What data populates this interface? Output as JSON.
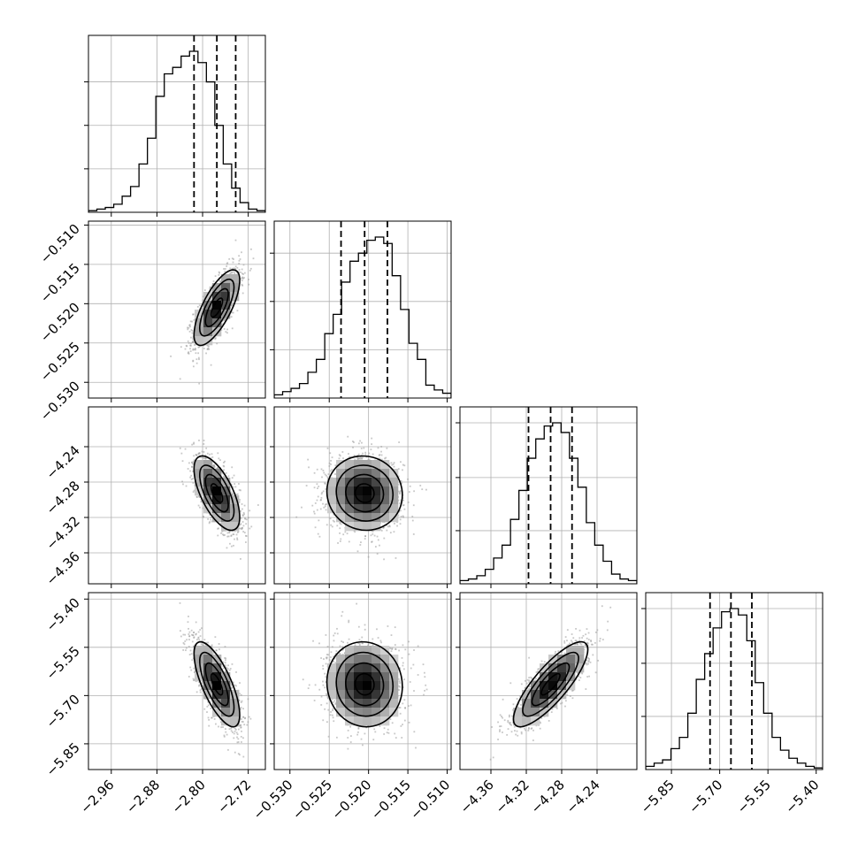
{
  "chart_data": {
    "type": "corner",
    "parameters": [
      {
        "range": [
          -3.0,
          -2.69
        ],
        "ticks": [
          -2.96,
          -2.88,
          -2.8,
          -2.72
        ],
        "tick_labels": [
          "−2.96",
          "−2.88",
          "−2.80",
          "−2.72"
        ],
        "median": -2.775,
        "quantiles": [
          -2.815,
          -2.775,
          -2.742
        ],
        "sigma": 0.02,
        "hist_counts": [
          0.01,
          0.02,
          0.03,
          0.05,
          0.1,
          0.16,
          0.3,
          0.46,
          0.72,
          0.86,
          0.9,
          0.97,
          1.0,
          0.93,
          0.81,
          0.54,
          0.3,
          0.15,
          0.06,
          0.02,
          0.01
        ],
        "hist_grid": [
          0.27,
          0.54,
          0.81
        ]
      },
      {
        "range": [
          -0.532,
          -0.5095
        ],
        "ticks": [
          -0.53,
          -0.525,
          -0.52,
          -0.515,
          -0.51
        ],
        "tick_labels": [
          "−0.530",
          "−0.525",
          "−0.520",
          "−0.515",
          "−0.510"
        ],
        "median": -0.5205,
        "quantiles": [
          -0.5235,
          -0.5205,
          -0.5176
        ],
        "sigma": 0.0024,
        "hist_counts": [
          0.02,
          0.04,
          0.06,
          0.09,
          0.16,
          0.24,
          0.4,
          0.52,
          0.72,
          0.85,
          0.9,
          0.98,
          1.0,
          0.96,
          0.76,
          0.55,
          0.34,
          0.24,
          0.08,
          0.05,
          0.03
        ],
        "hist_grid": [
          0.3,
          0.6,
          0.9
        ]
      },
      {
        "range": [
          -4.395,
          -4.195
        ],
        "ticks": [
          -4.36,
          -4.32,
          -4.28,
          -4.24
        ],
        "tick_labels": [
          "−4.36",
          "−4.32",
          "−4.28",
          "−4.24"
        ],
        "median": -4.2925,
        "quantiles": [
          -4.3175,
          -4.2925,
          -4.2683
        ],
        "sigma": 0.021,
        "hist_counts": [
          0.02,
          0.03,
          0.05,
          0.09,
          0.16,
          0.24,
          0.4,
          0.58,
          0.78,
          0.9,
          0.98,
          1.0,
          0.94,
          0.78,
          0.6,
          0.38,
          0.24,
          0.14,
          0.06,
          0.03,
          0.02
        ],
        "hist_grid": [
          0.33,
          0.66,
          1.0
        ]
      },
      {
        "range": [
          -5.93,
          -5.38
        ],
        "ticks": [
          -5.85,
          -5.7,
          -5.55,
          -5.4
        ],
        "tick_labels": [
          "−5.85",
          "−5.70",
          "−5.55",
          "−5.40"
        ],
        "median": -5.665,
        "quantiles": [
          -5.73,
          -5.665,
          -5.6
        ],
        "sigma": 0.066,
        "hist_counts": [
          0.02,
          0.04,
          0.06,
          0.13,
          0.2,
          0.35,
          0.56,
          0.72,
          0.88,
          0.98,
          1.0,
          0.96,
          0.8,
          0.54,
          0.35,
          0.2,
          0.12,
          0.07,
          0.04,
          0.02,
          0.01
        ],
        "hist_grid": [
          0.33,
          0.66,
          1.0
        ]
      }
    ],
    "correlations": [
      [
        1.0,
        0.72,
        -0.64,
        -0.72
      ],
      [
        0.72,
        1.0,
        -0.05,
        -0.05
      ],
      [
        -0.64,
        -0.05,
        1.0,
        0.82
      ],
      [
        -0.72,
        -0.05,
        0.82,
        1.0
      ]
    ],
    "contour_levels_sigma": [
      0.5,
      1.0,
      1.5,
      2.0
    ],
    "grid": true
  }
}
